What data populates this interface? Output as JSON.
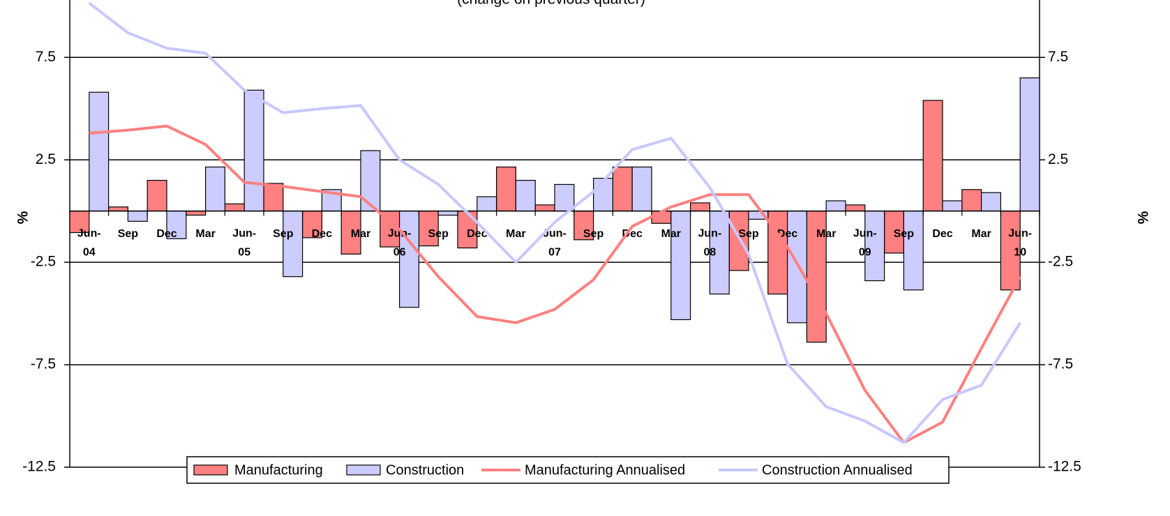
{
  "chart_data": {
    "type": "bar_line",
    "subtitle": "(change on previous quarter)",
    "ylabel": "%",
    "y2label": "%",
    "categories": [
      "Jun-04",
      "Sep",
      "Dec",
      "Mar",
      "Jun-05",
      "Sep",
      "Dec",
      "Mar",
      "Jun-06",
      "Sep",
      "Dec",
      "Mar",
      "Jun-07",
      "Sep",
      "Dec",
      "Mar",
      "Jun-08",
      "Sep",
      "Dec",
      "Mar",
      "Jun-09",
      "Sep",
      "Dec",
      "Mar",
      "Jun-10"
    ],
    "series": [
      {
        "name": "Manufacturing",
        "kind": "bar",
        "color": "#ff8080",
        "values": [
          -1.05,
          0.2,
          1.5,
          -0.2,
          0.35,
          1.35,
          -1.3,
          -2.1,
          -1.75,
          -1.7,
          -1.8,
          2.15,
          0.3,
          -1.4,
          2.15,
          -0.6,
          0.4,
          -2.9,
          -4.05,
          -6.4,
          0.3,
          -2.05,
          5.4,
          1.05,
          -3.85
        ]
      },
      {
        "name": "Construction",
        "kind": "bar",
        "color": "#ccccff",
        "values": [
          5.8,
          -0.5,
          -1.35,
          2.15,
          5.9,
          -3.2,
          1.05,
          2.95,
          -4.7,
          -0.2,
          0.7,
          1.5,
          1.3,
          1.6,
          2.15,
          -5.3,
          -4.05,
          -0.4,
          -5.45,
          0.5,
          -3.4,
          -3.85,
          0.5,
          0.9,
          6.5
        ]
      },
      {
        "name": "Manufacturing Annualised",
        "kind": "line",
        "color": "#ff8080",
        "values": [
          3.8,
          3.95,
          4.15,
          3.25,
          1.4,
          1.2,
          0.95,
          0.7,
          -0.9,
          -3.2,
          -5.15,
          -5.45,
          -4.8,
          -3.35,
          -0.75,
          0.2,
          0.8,
          0.8,
          -1.75,
          -5.0,
          -8.75,
          -11.3,
          -10.3,
          -6.7,
          -3.2
        ]
      },
      {
        "name": "Construction Annualised",
        "kind": "line",
        "color": "#c8c8ff",
        "values": [
          10.15,
          8.7,
          7.95,
          7.7,
          5.9,
          4.8,
          5.0,
          5.15,
          2.5,
          1.3,
          -0.55,
          -2.5,
          -0.55,
          0.95,
          3.0,
          3.55,
          1.15,
          -2.1,
          -7.45,
          -9.55,
          -10.25,
          -11.3,
          -9.2,
          -8.5,
          -5.45
        ]
      }
    ],
    "ylim": [
      -12.5,
      10.3
    ],
    "yticks": [
      -12.5,
      -7.5,
      -2.5,
      2.5,
      7.5
    ],
    "y2lim": [
      -12.5,
      10.3
    ],
    "y2ticks": [
      -12.5,
      -7.5,
      -2.5,
      2.5,
      7.5
    ],
    "grid": true,
    "legend": "bottom"
  }
}
